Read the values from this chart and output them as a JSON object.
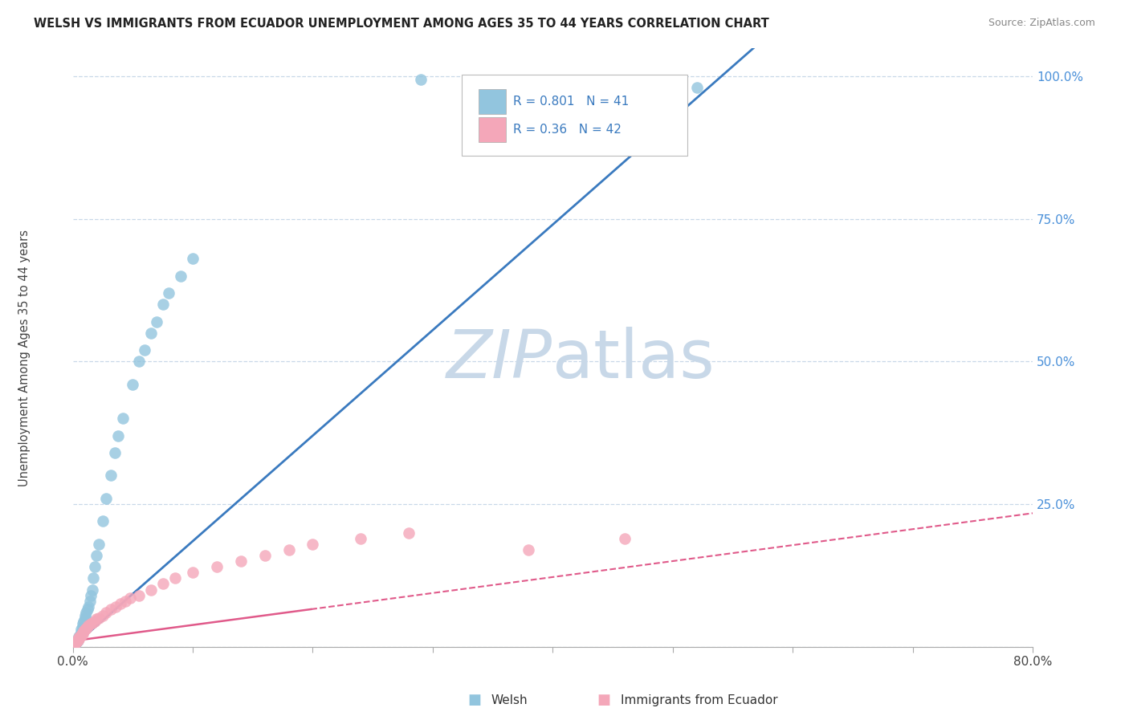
{
  "title": "WELSH VS IMMIGRANTS FROM ECUADOR UNEMPLOYMENT AMONG AGES 35 TO 44 YEARS CORRELATION CHART",
  "source": "Source: ZipAtlas.com",
  "ylabel_axis": "Unemployment Among Ages 35 to 44 years",
  "legend_label1": "Welsh",
  "legend_label2": "Immigrants from Ecuador",
  "r1": 0.801,
  "n1": 41,
  "r2": 0.36,
  "n2": 42,
  "blue_color": "#92c5de",
  "pink_color": "#f4a7b9",
  "blue_line_color": "#3a7abf",
  "pink_line_color": "#e05a8a",
  "watermark_color": "#c8d8e8",
  "background_color": "#ffffff",
  "welsh_x": [
    0.002,
    0.003,
    0.004,
    0.004,
    0.005,
    0.005,
    0.006,
    0.007,
    0.007,
    0.008,
    0.008,
    0.009,
    0.01,
    0.01,
    0.011,
    0.012,
    0.013,
    0.014,
    0.015,
    0.016,
    0.017,
    0.018,
    0.02,
    0.022,
    0.025,
    0.028,
    0.032,
    0.035,
    0.038,
    0.042,
    0.05,
    0.055,
    0.06,
    0.065,
    0.07,
    0.075,
    0.08,
    0.09,
    0.1,
    0.29,
    0.52
  ],
  "welsh_y": [
    0.005,
    0.008,
    0.01,
    0.012,
    0.015,
    0.018,
    0.02,
    0.025,
    0.03,
    0.035,
    0.04,
    0.045,
    0.05,
    0.055,
    0.06,
    0.065,
    0.07,
    0.08,
    0.09,
    0.1,
    0.12,
    0.14,
    0.16,
    0.18,
    0.22,
    0.26,
    0.3,
    0.34,
    0.37,
    0.4,
    0.46,
    0.5,
    0.52,
    0.55,
    0.57,
    0.6,
    0.62,
    0.65,
    0.68,
    0.995,
    0.98
  ],
  "ecuador_x": [
    0.001,
    0.002,
    0.003,
    0.004,
    0.004,
    0.005,
    0.005,
    0.006,
    0.007,
    0.008,
    0.008,
    0.009,
    0.01,
    0.011,
    0.012,
    0.013,
    0.015,
    0.016,
    0.018,
    0.02,
    0.022,
    0.025,
    0.028,
    0.032,
    0.036,
    0.04,
    0.044,
    0.048,
    0.055,
    0.065,
    0.075,
    0.085,
    0.1,
    0.12,
    0.14,
    0.16,
    0.18,
    0.2,
    0.24,
    0.28,
    0.38,
    0.46
  ],
  "ecuador_y": [
    0.003,
    0.006,
    0.008,
    0.01,
    0.012,
    0.014,
    0.016,
    0.018,
    0.02,
    0.022,
    0.025,
    0.028,
    0.03,
    0.032,
    0.035,
    0.038,
    0.04,
    0.042,
    0.045,
    0.048,
    0.05,
    0.055,
    0.06,
    0.065,
    0.07,
    0.075,
    0.08,
    0.085,
    0.09,
    0.1,
    0.11,
    0.12,
    0.13,
    0.14,
    0.15,
    0.16,
    0.17,
    0.18,
    0.19,
    0.2,
    0.17,
    0.19
  ],
  "blue_slope": 1.85,
  "blue_intercept": 0.0,
  "pink_slope": 0.28,
  "pink_intercept": 0.01,
  "xlim": [
    0,
    0.8
  ],
  "ylim": [
    0,
    1.05
  ],
  "xticks": [
    0.0,
    0.1,
    0.2,
    0.3,
    0.4,
    0.5,
    0.6,
    0.7,
    0.8
  ],
  "yticks": [
    0.0,
    0.25,
    0.5,
    0.75,
    1.0
  ],
  "ytick_labels": [
    "",
    "25.0%",
    "50.0%",
    "75.0%",
    "100.0%"
  ]
}
